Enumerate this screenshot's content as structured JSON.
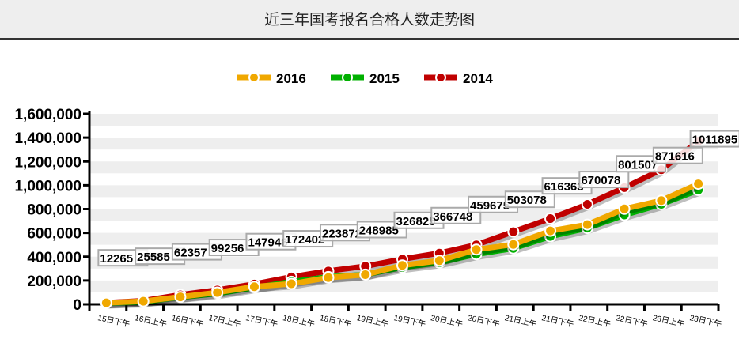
{
  "header": {
    "title": "近三年国考报名合格人数走势图"
  },
  "chart_data": {
    "type": "line",
    "title": "",
    "xlabel": "",
    "ylabel": "",
    "ylim": [
      0,
      1600000
    ],
    "yticks": [
      "0",
      "200,000",
      "400,000",
      "600,000",
      "800,000",
      "1,000,000",
      "1,200,000",
      "1,400,000",
      "1,600,000"
    ],
    "grid": true,
    "legend_placement": "top-center",
    "categories": [
      "15日下午",
      "16日上午",
      "16日下午",
      "17日上午",
      "17日下午",
      "18日上午",
      "18日下午",
      "19日上午",
      "19日下午",
      "20日上午",
      "20日下午",
      "21日上午",
      "21日下午",
      "22日上午",
      "22日下午",
      "23日上午",
      "23日下午"
    ],
    "series": [
      {
        "name": "2016",
        "color": "#f0a800",
        "values": [
          12265,
          25585,
          62357,
          99256,
          147948,
          172402,
          223872,
          248985,
          326825,
          366748,
          459675,
          503078,
          616363,
          670078,
          801507,
          871616,
          1011895
        ]
      },
      {
        "name": "2015",
        "color": "#00b000",
        "values": [
          10000,
          20000,
          60000,
          90000,
          140000,
          190000,
          230000,
          250000,
          310000,
          350000,
          420000,
          470000,
          570000,
          640000,
          750000,
          840000,
          960000
        ]
      },
      {
        "name": "2014",
        "color": "#c00000",
        "values": [
          13000,
          30000,
          80000,
          120000,
          170000,
          230000,
          280000,
          320000,
          380000,
          430000,
          500000,
          610000,
          720000,
          840000,
          980000,
          1130000,
          1370000
        ]
      }
    ],
    "data_labels": [
      "12265",
      "25585",
      "62357",
      "99256",
      "147948",
      "172402",
      "223872",
      "248985",
      "326825",
      "366748",
      "459675",
      "503078",
      "616363",
      "670078",
      "801507",
      "871616",
      "1011895"
    ]
  }
}
